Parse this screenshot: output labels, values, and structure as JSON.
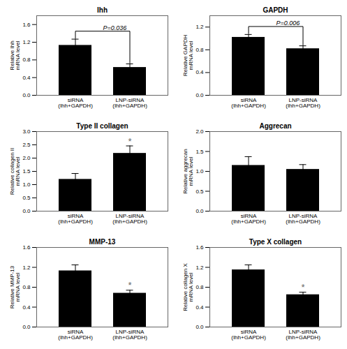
{
  "chart_data": [
    {
      "type": "bar",
      "title": "Ihh",
      "ylabel": "Relative Ihh\nmRNA level",
      "categories": [
        "siRNA\n(Ihh+GAPDH)",
        "LNP-siRNA\n(Ihh+GAPDH)"
      ],
      "values": [
        1.13,
        0.63
      ],
      "errors": [
        0.14,
        0.08
      ],
      "color": "#000000",
      "ylim": [
        0,
        1.8
      ],
      "yticks": [
        {
          "value": 0,
          "label": "0.0"
        },
        0.4,
        0.8,
        1.2,
        1.6
      ],
      "annotations": [
        {
          "text": "P=0.036",
          "bracket": [
            "siRNA\n(Ihh+GAPDH)",
            "LNP-siRNA\n(Ihh+GAPDH)"
          ]
        }
      ]
    },
    {
      "type": "bar",
      "title": "GAPDH",
      "ylabel": "Relative GAPDH\nmRNA level",
      "categories": [
        "siRNA\n(Ihh+GAPDH)",
        "LNP-siRNA\n(Ihh+GAPDH)"
      ],
      "values": [
        1.02,
        0.82
      ],
      "errors": [
        0.05,
        0.05
      ],
      "color": "#000000",
      "ylim": [
        0,
        1.4
      ],
      "yticks": [
        {
          "value": 0,
          "label": "0.0"
        },
        0.4,
        0.8,
        1.2
      ],
      "annotations": [
        {
          "text": "P=0.006",
          "bracket": [
            "siRNA\n(Ihh+GAPDH)",
            "LNP-siRNA\n(Ihh+GAPDH)"
          ]
        }
      ]
    },
    {
      "type": "bar",
      "title": "Type II collagen",
      "ylabel": "Relative collagen II\nmRNA level",
      "categories": [
        "siRNA\n(Ihh+GAPDH)",
        "LNP-siRNA\n(Ihh+GAPDH)"
      ],
      "values": [
        1.2,
        2.18
      ],
      "errors": [
        0.22,
        0.28
      ],
      "color": "#000000",
      "ylim": [
        0,
        3.0
      ],
      "yticks": [
        {
          "value": 0,
          "label": "0.0"
        },
        0.5,
        {
          "value": 1.0,
          "label": "1.0"
        },
        1.5,
        {
          "value": 2.0,
          "label": "2.0"
        },
        2.5,
        {
          "value": 3.0,
          "label": "3.0"
        }
      ],
      "annotations": [
        {
          "text": "*",
          "category": "LNP-siRNA\n(Ihh+GAPDH)"
        }
      ]
    },
    {
      "type": "bar",
      "title": "Aggrecan",
      "ylabel": "Relative aggrecan\nmRNA level",
      "categories": [
        "siRNA\n(Ihh+GAPDH)",
        "LNP-siRNA\n(Ihh+GAPDH)"
      ],
      "values": [
        1.15,
        1.05
      ],
      "errors": [
        0.22,
        0.12
      ],
      "color": "#000000",
      "ylim": [
        0,
        2.0
      ],
      "yticks": [
        {
          "value": 0,
          "label": "0.0"
        },
        0.5,
        {
          "value": 1.0,
          "label": "1.0"
        },
        1.5,
        {
          "value": 2.0,
          "label": "2.0"
        }
      ]
    },
    {
      "type": "bar",
      "title": "MMP-13",
      "ylabel": "Relative MMP-13\nmRNA level",
      "categories": [
        "siRNA\n(Ihh+GAPDH)",
        "LNP-siRNA\n(Ihh+GAPDH)"
      ],
      "values": [
        1.13,
        0.68
      ],
      "errors": [
        0.12,
        0.06
      ],
      "color": "#000000",
      "ylim": [
        0,
        1.6
      ],
      "yticks": [
        {
          "value": 0,
          "label": "0.0"
        },
        0.4,
        0.8,
        1.2,
        1.6
      ],
      "annotations": [
        {
          "text": "*",
          "category": "LNP-siRNA\n(Ihh+GAPDH)"
        }
      ]
    },
    {
      "type": "bar",
      "title": "Type X collagen",
      "ylabel": "Relative collagen X\nmRNA level",
      "categories": [
        "siRNA\n(Ihh+GAPDH)",
        "LNP-siRNA\n(Ihh+GAPDH)"
      ],
      "values": [
        1.15,
        0.65
      ],
      "errors": [
        0.1,
        0.05
      ],
      "color": "#000000",
      "ylim": [
        0,
        1.6
      ],
      "yticks": [
        {
          "value": 0,
          "label": "0.0"
        },
        0.4,
        0.8,
        1.2,
        1.6
      ],
      "annotations": [
        {
          "text": "*",
          "category": "LNP-siRNA\n(Ihh+GAPDH)"
        }
      ]
    }
  ]
}
